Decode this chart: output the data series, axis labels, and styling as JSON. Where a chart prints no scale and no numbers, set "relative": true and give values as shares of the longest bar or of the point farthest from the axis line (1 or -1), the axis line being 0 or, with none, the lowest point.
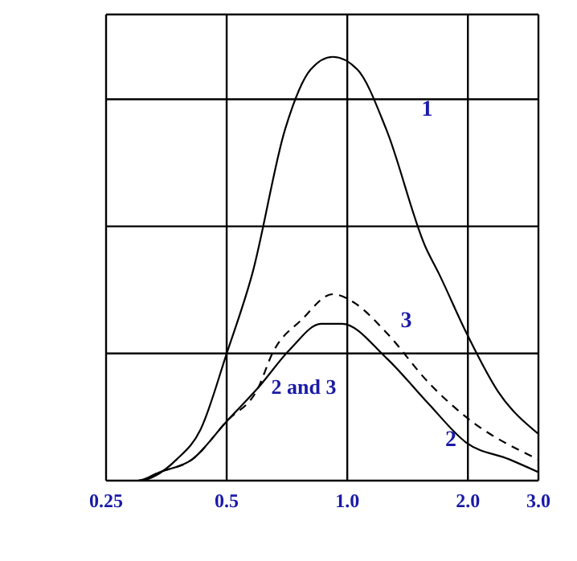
{
  "chart_data": {
    "type": "line",
    "relative": true,
    "log": "x",
    "grid": true,
    "marker": "none",
    "xlim": [
      0.25,
      3
    ],
    "xticks": [
      {
        "value": 0.25,
        "label": "0.25"
      },
      0.5,
      {
        "value": 1,
        "label": "1.0"
      },
      {
        "value": 2,
        "label": "2.0"
      },
      {
        "value": 3,
        "label": "3.0"
      }
    ],
    "tick_labels": "x",
    "series": [
      {
        "name": "1",
        "color": "#000000",
        "line_style": "solid",
        "x": [
          0.25,
          0.3,
          0.375,
          0.43,
          0.5,
          0.58,
          0.7,
          0.81,
          0.92,
          1.06,
          1.25,
          1.57,
          1.69,
          1.98,
          2.38,
          3.0
        ],
        "values": [
          0,
          0,
          0.05,
          0.12,
          0.3,
          0.49,
          0.83,
          0.97,
          1,
          0.97,
          0.83,
          0.55,
          0.49,
          0.35,
          0.21,
          0.11
        ]
      },
      {
        "name": "2",
        "color": "#000000",
        "line_style": "solid",
        "x": [
          0.25,
          0.3,
          0.34,
          0.41,
          0.5,
          0.6,
          0.72,
          0.86,
          0.97,
          1.25,
          1.6,
          1.98,
          2.54,
          3.0
        ],
        "values": [
          0,
          0,
          0.02,
          0.05,
          0.14,
          0.22,
          0.31,
          0.37,
          0.37,
          0.29,
          0.18,
          0.09,
          0.05,
          0.02
        ]
      },
      {
        "name": "3",
        "color": "#000000",
        "line_style": "dashed",
        "x": [
          0.25,
          0.3,
          0.34,
          0.41,
          0.5,
          0.6,
          0.65,
          0.77,
          0.92,
          1.04,
          1.25,
          1.6,
          1.98,
          3.0
        ],
        "values": [
          0,
          0,
          0.02,
          0.05,
          0.14,
          0.22,
          0.3,
          0.38,
          0.44,
          0.42,
          0.35,
          0.23,
          0.15,
          0.05
        ]
      }
    ],
    "annotations": [
      "2 and 3"
    ]
  }
}
